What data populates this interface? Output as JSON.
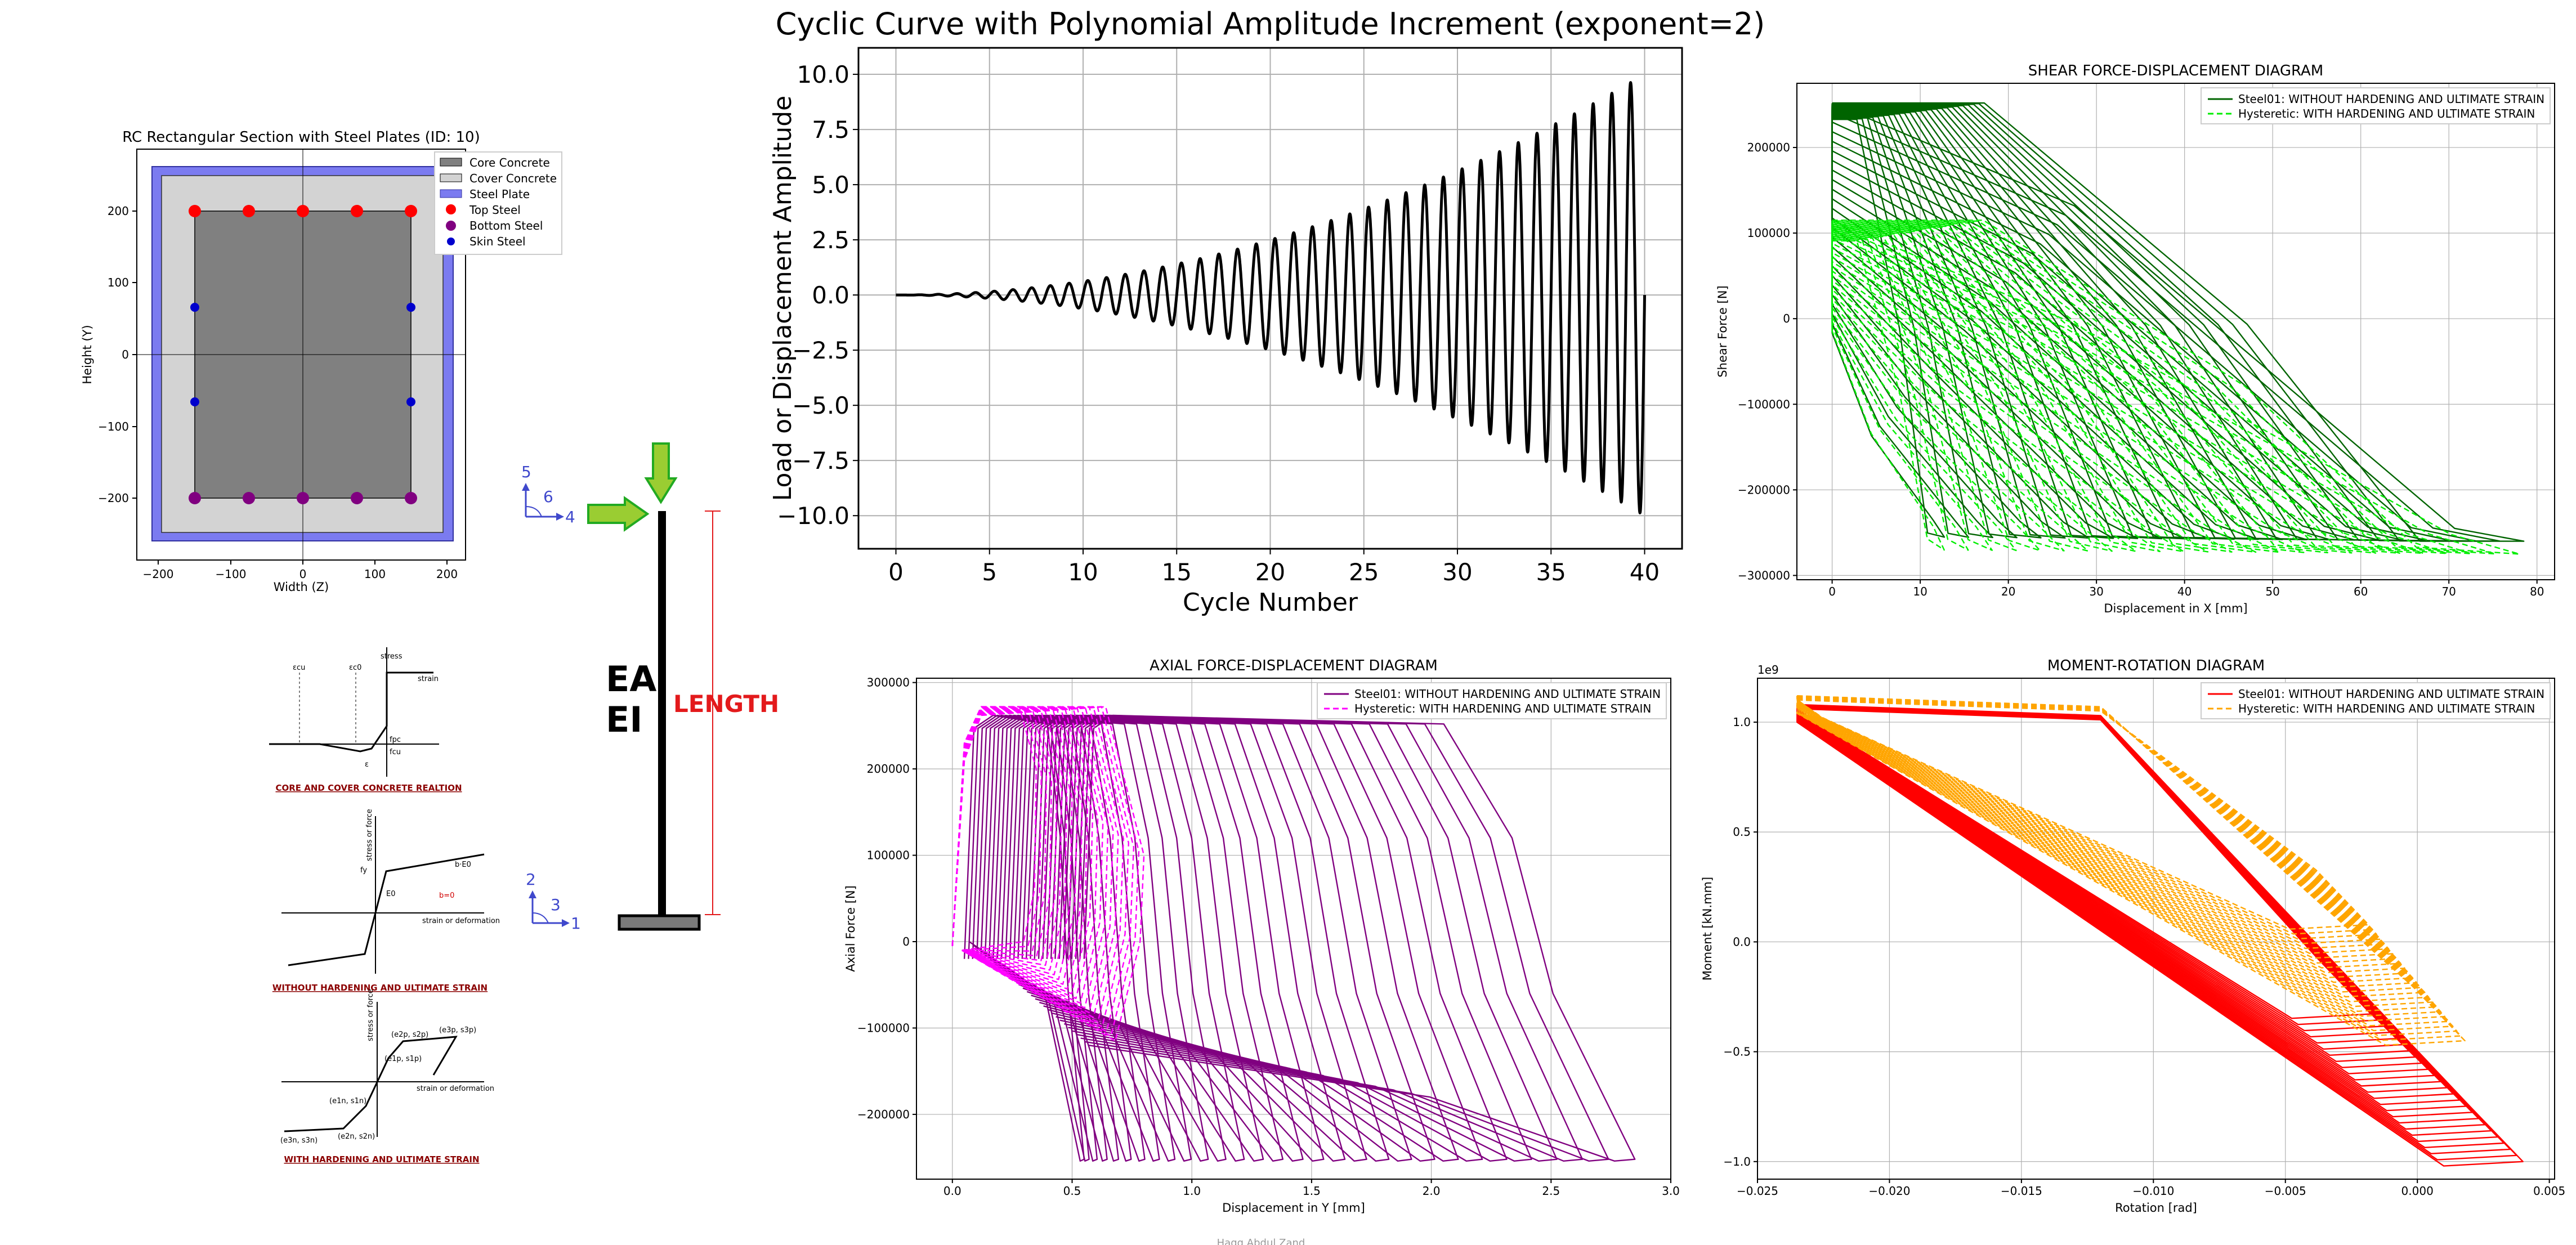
{
  "colors": {
    "core": "#808080",
    "cover": "#d3d3d3",
    "plate": "#7b7bf0",
    "top_steel": "#ff0000",
    "bottom_steel": "#800080",
    "skin_steel": "#0000cd",
    "shear_a": "#006400",
    "shear_b": "#00ee00",
    "axial_a": "#800080",
    "axial_b": "#ff00ff",
    "moment_a": "#ff0000",
    "moment_b": "#ffa500",
    "arrow_green": "#9acd32",
    "length": "#e31a1c",
    "axes_blue": "#3f48cc"
  },
  "section": {
    "title": "RC Rectangular Section with Steel Plates (ID: 10)",
    "xlabel": "Width (Z)",
    "ylabel": "Height (Y)",
    "xticks": [
      "−200",
      "−100",
      "0",
      "100",
      "200"
    ],
    "yticks": [
      "200",
      "100",
      "0",
      "−100",
      "−200"
    ],
    "legend": [
      "Core Concrete",
      "Cover Concrete",
      "Steel Plate",
      "Top Steel",
      "Bottom Steel",
      "Skin Steel"
    ]
  },
  "schematic": {
    "ea": "EA",
    "ei": "EI",
    "length": "LENGTH",
    "top_axes": [
      "5",
      "6",
      "4"
    ],
    "bottom_axes": [
      "2",
      "3",
      "1"
    ]
  },
  "material_diagrams": {
    "concrete_caption": "CORE AND COVER CONCRETE REALTION",
    "steel01_caption": "WITHOUT HARDENING AND ULTIMATE STRAIN",
    "hysteretic_caption": "WITH HARDENING AND ULTIMATE STRAIN",
    "concrete_labels": [
      "fcu",
      "fpc",
      "εcu",
      "εc0",
      "ε",
      "stress",
      "strain"
    ],
    "steel01_labels": [
      "fy",
      "E0",
      "b·E0",
      "b=0",
      "stress or force",
      "strain or deformation"
    ],
    "hysteretic_labels": [
      "(e1p, s1p)",
      "(e2p, s2p)",
      "(e3p, s3p)",
      "(e1n, s1n)",
      "(e2n, s2n)",
      "(e3n, s3n)",
      "stress or force",
      "strain or deformation"
    ]
  },
  "footer_text": "Haqq Abdul Zand",
  "chart_data": [
    {
      "type": "line",
      "title": "Cyclic Curve with Polynomial Amplitude Increment (exponent=2)",
      "xlabel": "Cycle Number",
      "ylabel": "Load or Displacement Amplitude",
      "xlim": [
        -2,
        42
      ],
      "ylim": [
        -11.5,
        11.2
      ],
      "xticks": [
        0,
        5,
        10,
        15,
        20,
        25,
        30,
        35,
        40
      ],
      "yticks": [
        10.0,
        7.5,
        5.0,
        2.5,
        0.0,
        -2.5,
        -5.0,
        -7.5,
        -10.0
      ],
      "yticklabels": [
        "10.0",
        "7.5",
        "5.0",
        "2.5",
        "0.0",
        "−2.5",
        "−5.0",
        "−7.5",
        "−10.0"
      ],
      "cycles": 40,
      "max_amplitude": 10.0,
      "amplitude_exponent": 2,
      "grid": true
    },
    {
      "type": "line",
      "title": "SHEAR FORCE-DISPLACEMENT DIAGRAM",
      "xlabel": "Displacement  in X [mm]",
      "ylabel": "Shear Force [N]",
      "xlim": [
        -4,
        82
      ],
      "ylim": [
        -305000,
        275000
      ],
      "xticks": [
        0,
        10,
        20,
        30,
        40,
        50,
        60,
        70,
        80
      ],
      "yticks": [
        200000,
        100000,
        0,
        -100000,
        -200000,
        -300000
      ],
      "yticklabels": [
        "200000",
        "100000",
        "0",
        "−100000",
        "−200000",
        "−300000"
      ],
      "legend_position": "top-right",
      "grid": true,
      "series": [
        {
          "name": "Steel01: WITHOUT HARDENING AND ULTIMATE STRAIN",
          "style": "solid",
          "envelope_tip": [
            78.5,
            -260000
          ],
          "upper_plateau": 252000,
          "elastic_bottom": [
            0,
            0
          ],
          "lower_plateau": -265000,
          "cycles": 25
        },
        {
          "name": "Hysteretic: WITH HARDENING AND ULTIMATE STRAIN",
          "style": "dashed",
          "envelope_tip": [
            78,
            -275000
          ],
          "upper_plateau": 115000,
          "elastic_bottom": [
            0,
            0
          ],
          "lower_plateau": -272000,
          "cycles": 25
        }
      ]
    },
    {
      "type": "line",
      "title": "AXIAL FORCE-DISPLACEMENT DIAGRAM",
      "xlabel": "Displacement in Y [mm]",
      "ylabel": "Axial Force [N]",
      "xlim": [
        -0.15,
        3.0
      ],
      "ylim": [
        -275000,
        305000
      ],
      "xticks": [
        0.0,
        0.5,
        1.0,
        1.5,
        2.0,
        2.5,
        3.0
      ],
      "xticklabels": [
        "0.0",
        "0.5",
        "1.0",
        "1.5",
        "2.0",
        "2.5",
        "3.0"
      ],
      "yticks": [
        300000,
        200000,
        100000,
        0,
        -100000,
        -200000
      ],
      "yticklabels": [
        "300000",
        "200000",
        "100000",
        "0",
        "−100000",
        "−200000"
      ],
      "legend_position": "top-right",
      "grid": true,
      "series": [
        {
          "name": "Steel01: WITHOUT HARDENING AND ULTIMATE STRAIN",
          "style": "solid",
          "tension_plateau": 262000,
          "compression_plateau": -252000,
          "max_displacement": 2.85,
          "cycles": 30
        },
        {
          "name": "Hysteretic: WITH HARDENING AND ULTIMATE STRAIN",
          "style": "dashed",
          "tension_plateau": 272000,
          "compression_min": -115000,
          "max_displacement": 0.8,
          "cycles": 22
        }
      ]
    },
    {
      "type": "line",
      "title": "MOMENT-ROTATION DIAGRAM",
      "xlabel": "Rotation [rad]",
      "ylabel": "Moment [kN.mm]",
      "scale_label": "1e9",
      "xlim": [
        -0.025,
        0.0052
      ],
      "ylim": [
        -1.08,
        1.2
      ],
      "xticks": [
        -0.025,
        -0.02,
        -0.015,
        -0.01,
        -0.005,
        0.0,
        0.005
      ],
      "xticklabels": [
        "−0.025",
        "−0.020",
        "−0.015",
        "−0.010",
        "−0.005",
        "0.000",
        "0.005"
      ],
      "yticks": [
        1.0,
        0.5,
        0.0,
        -0.5,
        -1.0
      ],
      "yticklabels": [
        "1.0",
        "0.5",
        "0.0",
        "−0.5",
        "−1.0"
      ],
      "legend_position": "top-right",
      "grid": true,
      "series": [
        {
          "name": "Steel01: WITHOUT HARDENING AND ULTIMATE STRAIN",
          "style": "solid",
          "left_tip": [
            -0.0235,
            1.08
          ],
          "right_tip": [
            0.004,
            -1.0
          ],
          "cycles": 25
        },
        {
          "name": "Hysteretic: WITH HARDENING AND ULTIMATE STRAIN",
          "style": "dashed",
          "left_tip": [
            -0.0235,
            1.12
          ],
          "right_tip": [
            0.0018,
            -0.45
          ],
          "cycles": 25
        }
      ]
    }
  ]
}
